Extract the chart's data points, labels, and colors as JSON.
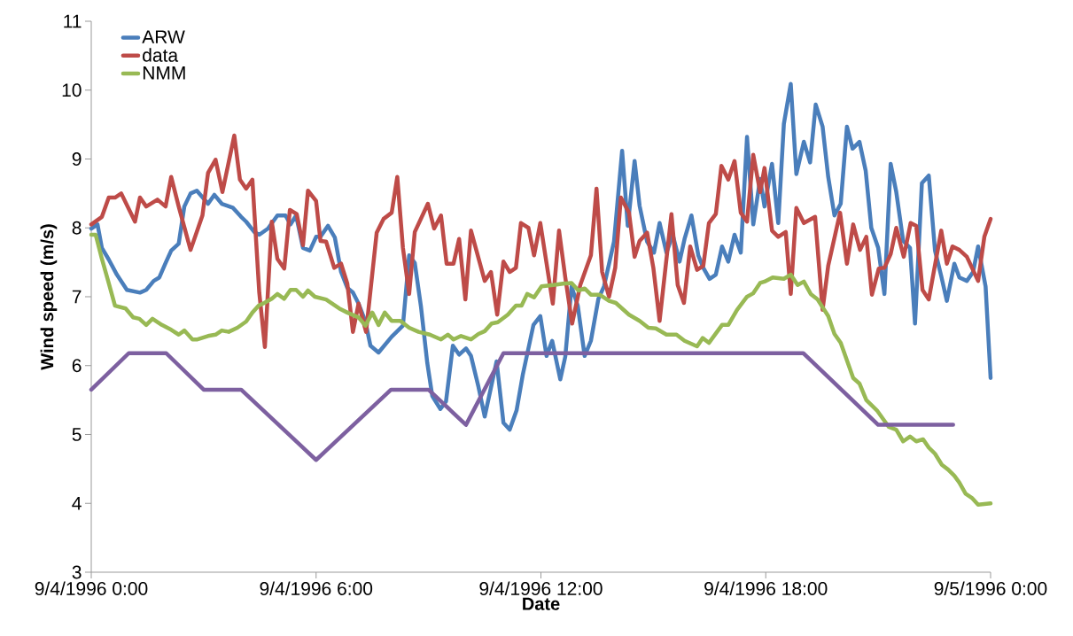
{
  "chart_data": {
    "type": "line",
    "xlabel": "Date",
    "ylabel": "Wind speed (m/s)",
    "xlim": [
      "1996-09-04T00:00",
      "1996-09-05T00:00"
    ],
    "xticks": [
      {
        "value": "1996-09-04T00:00",
        "label": "9/4/1996 0:00"
      },
      {
        "value": "1996-09-04T06:00",
        "label": "9/4/1996 6:00"
      },
      {
        "value": "1996-09-04T12:00",
        "label": "9/4/1996 12:00"
      },
      {
        "value": "1996-09-04T18:00",
        "label": "9/4/1996 18:00"
      },
      {
        "value": "1996-09-05T00:00",
        "label": "9/5/1996 0:00"
      }
    ],
    "ylim": [
      3,
      11
    ],
    "yticks": [
      3,
      4,
      5,
      6,
      7,
      8,
      9,
      10,
      11
    ],
    "legend": "top left",
    "series": [
      {
        "name": "ARW",
        "color": "#4a7ebb",
        "x": [
          "1996-09-04T00:00",
          "1996-09-04T00:10",
          "1996-09-04T00:17",
          "1996-09-04T00:28",
          "1996-09-04T00:41",
          "1996-09-04T00:57",
          "1996-09-04T01:18",
          "1996-09-04T01:28",
          "1996-09-04T01:40",
          "1996-09-04T01:49",
          "1996-09-04T01:59",
          "1996-09-04T02:08",
          "1996-09-04T02:20",
          "1996-09-04T02:29",
          "1996-09-04T02:39",
          "1996-09-04T02:49",
          "1996-09-04T03:07",
          "1996-09-04T03:17",
          "1996-09-04T03:29",
          "1996-09-04T03:47",
          "1996-09-04T04:00",
          "1996-09-04T04:08",
          "1996-09-04T04:21",
          "1996-09-04T04:29",
          "1996-09-04T04:43",
          "1996-09-04T04:58",
          "1996-09-04T05:11",
          "1996-09-04T05:19",
          "1996-09-04T05:28",
          "1996-09-04T05:39",
          "1996-09-04T05:50",
          "1996-09-04T06:00",
          "1996-09-04T06:07",
          "1996-09-04T06:19",
          "1996-09-04T06:30",
          "1996-09-04T06:40",
          "1996-09-04T06:50",
          "1996-09-04T06:59",
          "1996-09-04T07:08",
          "1996-09-04T07:19",
          "1996-09-04T07:27",
          "1996-09-04T07:40",
          "1996-09-04T08:01",
          "1996-09-04T08:19",
          "1996-09-04T08:29",
          "1996-09-04T08:38",
          "1996-09-04T08:48",
          "1996-09-04T08:58",
          "1996-09-04T09:06",
          "1996-09-04T09:19",
          "1996-09-04T09:28",
          "1996-09-04T09:39",
          "1996-09-04T09:49",
          "1996-09-04T10:00",
          "1996-09-04T10:08",
          "1996-09-04T10:20",
          "1996-09-04T10:30",
          "1996-09-04T10:49",
          "1996-09-04T11:00",
          "1996-09-04T11:10",
          "1996-09-04T11:21",
          "1996-09-04T11:31",
          "1996-09-04T11:48",
          "1996-09-04T11:59",
          "1996-09-04T12:09",
          "1996-09-04T12:18",
          "1996-09-04T12:31",
          "1996-09-04T12:39",
          "1996-09-04T12:49",
          "1996-09-04T12:59",
          "1996-09-04T13:10",
          "1996-09-04T13:20",
          "1996-09-04T13:32",
          "1996-09-04T13:41",
          "1996-09-04T13:57",
          "1996-09-04T14:10",
          "1996-09-04T14:19",
          "1996-09-04T14:30",
          "1996-09-04T14:38",
          "1996-09-04T14:50",
          "1996-09-04T15:01",
          "1996-09-04T15:10",
          "1996-09-04T15:21",
          "1996-09-04T15:31",
          "1996-09-04T15:42",
          "1996-09-04T15:50",
          "1996-09-04T16:01",
          "1996-09-04T16:12",
          "1996-09-04T16:20",
          "1996-09-04T16:30",
          "1996-09-04T16:40",
          "1996-09-04T16:50",
          "1996-09-04T17:00",
          "1996-09-04T17:10",
          "1996-09-04T17:20",
          "1996-09-04T17:30",
          "1996-09-04T17:40",
          "1996-09-04T17:51",
          "1996-09-04T17:58",
          "1996-09-04T18:10",
          "1996-09-04T18:20",
          "1996-09-04T18:29",
          "1996-09-04T18:40",
          "1996-09-04T18:49",
          "1996-09-04T19:01",
          "1996-09-04T19:11",
          "1996-09-04T19:20",
          "1996-09-04T19:31",
          "1996-09-04T19:40",
          "1996-09-04T19:50",
          "1996-09-04T20:00",
          "1996-09-04T20:10",
          "1996-09-04T20:19",
          "1996-09-04T20:30",
          "1996-09-04T20:40",
          "1996-09-04T20:49",
          "1996-09-04T21:00",
          "1996-09-04T21:10",
          "1996-09-04T21:20",
          "1996-09-04T21:29",
          "1996-09-04T21:40",
          "1996-09-04T21:51",
          "1996-09-04T21:59",
          "1996-09-04T22:10",
          "1996-09-04T22:21",
          "1996-09-04T22:31",
          "1996-09-04T22:41",
          "1996-09-04T22:50",
          "1996-09-04T23:02",
          "1996-09-04T23:10",
          "1996-09-04T23:22",
          "1996-09-04T23:32",
          "1996-09-04T23:40",
          "1996-09-04T23:52",
          "1996-09-05T00:00"
        ],
        "values": [
          7.99,
          8.05,
          7.71,
          7.54,
          7.32,
          7.1,
          7.06,
          7.1,
          7.23,
          7.28,
          7.49,
          7.67,
          7.77,
          8.31,
          8.5,
          8.54,
          8.35,
          8.48,
          8.35,
          8.29,
          8.16,
          8.09,
          7.94,
          7.9,
          7.99,
          8.18,
          8.18,
          8.05,
          8.18,
          7.71,
          7.67,
          7.87,
          7.87,
          8.03,
          7.86,
          7.36,
          7.13,
          7.06,
          6.9,
          6.64,
          6.29,
          6.19,
          6.42,
          6.58,
          7.6,
          7.49,
          6.85,
          6.04,
          5.56,
          5.37,
          5.48,
          6.29,
          6.16,
          6.25,
          6.14,
          5.69,
          5.26,
          6.06,
          5.17,
          5.07,
          5.35,
          5.87,
          6.59,
          6.72,
          6.14,
          6.36,
          5.8,
          6.13,
          7.15,
          6.87,
          6.14,
          6.36,
          6.97,
          7.15,
          7.8,
          9.12,
          8.03,
          8.97,
          8.32,
          7.8,
          7.64,
          8.07,
          7.64,
          7.9,
          7.51,
          7.84,
          8.18,
          7.6,
          7.42,
          7.26,
          7.32,
          7.73,
          7.51,
          7.9,
          7.64,
          9.32,
          8.05,
          8.71,
          8.31,
          8.93,
          8.07,
          9.51,
          10.09,
          8.78,
          9.25,
          8.95,
          9.79,
          9.47,
          8.74,
          8.18,
          8.35,
          9.47,
          9.15,
          9.25,
          8.83,
          8.0,
          7.71,
          7.04,
          8.93,
          8.52,
          7.81,
          7.71,
          6.61,
          8.65,
          8.76,
          7.67,
          7.3,
          6.94,
          7.48,
          7.28,
          7.23,
          7.36,
          7.73,
          7.15,
          5.82
        ]
      },
      {
        "name": "data",
        "color": "#be4b48",
        "x": [
          "1996-09-04T00:00",
          "1996-09-04T00:17",
          "1996-09-04T00:28",
          "1996-09-04T00:38",
          "1996-09-04T00:48",
          "1996-09-04T01:10",
          "1996-09-04T01:18",
          "1996-09-04T01:28",
          "1996-09-04T01:46",
          "1996-09-04T01:59",
          "1996-09-04T02:08",
          "1996-09-04T02:20",
          "1996-09-04T02:39",
          "1996-09-04T02:58",
          "1996-09-04T03:07",
          "1996-09-04T03:19",
          "1996-09-04T03:30",
          "1996-09-04T03:49",
          "1996-09-04T03:58",
          "1996-09-04T04:08",
          "1996-09-04T04:18",
          "1996-09-04T04:29",
          "1996-09-04T04:38",
          "1996-09-04T04:49",
          "1996-09-04T04:58",
          "1996-09-04T05:09",
          "1996-09-04T05:18",
          "1996-09-04T05:29",
          "1996-09-04T05:39",
          "1996-09-04T05:47",
          "1996-09-04T06:00",
          "1996-09-04T06:07",
          "1996-09-04T06:16",
          "1996-09-04T06:29",
          "1996-09-04T06:40",
          "1996-09-04T06:50",
          "1996-09-04T06:59",
          "1996-09-04T07:08",
          "1996-09-04T07:20",
          "1996-09-04T07:37",
          "1996-09-04T07:48",
          "1996-09-04T08:01",
          "1996-09-04T08:10",
          "1996-09-04T08:19",
          "1996-09-04T08:29",
          "1996-09-04T08:38",
          "1996-09-04T08:59",
          "1996-09-04T09:09",
          "1996-09-04T09:20",
          "1996-09-04T09:29",
          "1996-09-04T09:40",
          "1996-09-04T09:49",
          "1996-09-04T09:59",
          "1996-09-04T10:08",
          "1996-09-04T10:30",
          "1996-09-04T10:40",
          "1996-09-04T10:50",
          "1996-09-04T11:00",
          "1996-09-04T11:10",
          "1996-09-04T11:20",
          "1996-09-04T11:28",
          "1996-09-04T11:40",
          "1996-09-04T11:49",
          "1996-09-04T11:59",
          "1996-09-04T12:19",
          "1996-09-04T12:29",
          "1996-09-04T12:39",
          "1996-09-04T12:50",
          "1996-09-04T13:03",
          "1996-09-04T13:20",
          "1996-09-04T13:29",
          "1996-09-04T13:38",
          "1996-09-04T13:49",
          "1996-09-04T13:59",
          "1996-09-04T14:08",
          "1996-09-04T14:21",
          "1996-09-04T14:30",
          "1996-09-04T14:38",
          "1996-09-04T14:50",
          "1996-09-04T15:00",
          "1996-09-04T15:10",
          "1996-09-04T15:29",
          "1996-09-04T15:39",
          "1996-09-04T15:49",
          "1996-09-04T15:59",
          "1996-09-04T16:10",
          "1996-09-04T16:20",
          "1996-09-04T16:29",
          "1996-09-04T16:40",
          "1996-09-04T16:49",
          "1996-09-04T17:00",
          "1996-09-04T17:10",
          "1996-09-04T17:20",
          "1996-09-04T17:30",
          "1996-09-04T17:40",
          "1996-09-04T17:51",
          "1996-09-04T17:58",
          "1996-09-04T18:10",
          "1996-09-04T18:20",
          "1996-09-04T18:32",
          "1996-09-04T18:40",
          "1996-09-04T18:49",
          "1996-09-04T19:01",
          "1996-09-04T19:19",
          "1996-09-04T19:31",
          "1996-09-04T19:40",
          "1996-09-04T19:59",
          "1996-09-04T20:10",
          "1996-09-04T20:20",
          "1996-09-04T20:31",
          "1996-09-04T20:41",
          "1996-09-04T20:50",
          "1996-09-04T21:01",
          "1996-09-04T21:10",
          "1996-09-04T21:20",
          "1996-09-04T21:29",
          "1996-09-04T21:41",
          "1996-09-04T21:52",
          "1996-09-04T22:01",
          "1996-09-04T22:11",
          "1996-09-04T22:21",
          "1996-09-04T22:41",
          "1996-09-04T22:50",
          "1996-09-04T22:59",
          "1996-09-04T23:10",
          "1996-09-04T23:22",
          "1996-09-04T23:40",
          "1996-09-04T23:50",
          "1996-09-05T00:00"
        ],
        "values": [
          8.05,
          8.16,
          8.44,
          8.44,
          8.5,
          8.09,
          8.44,
          8.31,
          8.41,
          8.31,
          8.74,
          8.31,
          7.68,
          8.18,
          8.8,
          8.99,
          8.52,
          9.34,
          8.7,
          8.57,
          8.7,
          7.06,
          6.27,
          8.09,
          7.55,
          7.41,
          8.26,
          8.2,
          7.75,
          8.54,
          8.39,
          7.81,
          7.8,
          7.42,
          7.48,
          7.19,
          6.49,
          6.9,
          6.49,
          7.93,
          8.13,
          8.22,
          8.74,
          7.71,
          7.04,
          7.94,
          8.35,
          7.99,
          8.18,
          7.48,
          7.48,
          7.84,
          6.96,
          7.96,
          7.23,
          7.36,
          6.74,
          7.51,
          7.36,
          7.42,
          8.07,
          8.0,
          7.6,
          8.07,
          6.9,
          7.96,
          7.28,
          6.61,
          7.17,
          7.6,
          8.57,
          7.36,
          7.0,
          7.42,
          8.44,
          8.22,
          7.58,
          7.81,
          7.93,
          7.42,
          6.65,
          8.2,
          7.17,
          6.91,
          7.73,
          7.39,
          7.45,
          8.07,
          8.2,
          8.9,
          8.7,
          8.97,
          8.22,
          8.09,
          9.06,
          8.52,
          8.87,
          7.96,
          7.87,
          7.94,
          7.04,
          8.29,
          8.07,
          8.16,
          6.81,
          7.45,
          8.22,
          7.48,
          8.05,
          7.68,
          7.87,
          7.03,
          7.41,
          7.42,
          7.62,
          8.0,
          7.58,
          8.07,
          8.03,
          7.1,
          6.96,
          7.96,
          7.48,
          7.73,
          7.68,
          7.58,
          7.23,
          7.87,
          8.13
        ]
      },
      {
        "name": "NMM",
        "color": "#98b954",
        "x": [
          "1996-09-04T00:00",
          "1996-09-04T00:07",
          "1996-09-04T00:17",
          "1996-09-04T00:27",
          "1996-09-04T00:38",
          "1996-09-04T00:55",
          "1996-09-04T01:07",
          "1996-09-04T01:17",
          "1996-09-04T01:28",
          "1996-09-04T01:38",
          "1996-09-04T01:53",
          "1996-09-04T02:08",
          "1996-09-04T02:20",
          "1996-09-04T02:29",
          "1996-09-04T02:42",
          "1996-09-04T02:50",
          "1996-09-04T03:07",
          "1996-09-04T03:19",
          "1996-09-04T03:29",
          "1996-09-04T03:40",
          "1996-09-04T03:54",
          "1996-09-04T04:08",
          "1996-09-04T04:18",
          "1996-09-04T04:28",
          "1996-09-04T04:37",
          "1996-09-04T04:49",
          "1996-09-04T04:58",
          "1996-09-04T05:09",
          "1996-09-04T05:19",
          "1996-09-04T05:28",
          "1996-09-04T05:39",
          "1996-09-04T05:47",
          "1996-09-04T05:58",
          "1996-09-04T06:16",
          "1996-09-04T06:37",
          "1996-09-04T06:50",
          "1996-09-04T07:08",
          "1996-09-04T07:19",
          "1996-09-04T07:30",
          "1996-09-04T07:40",
          "1996-09-04T07:50",
          "1996-09-04T08:01",
          "1996-09-04T08:15",
          "1996-09-04T08:29",
          "1996-09-04T08:44",
          "1996-09-04T09:02",
          "1996-09-04T09:20",
          "1996-09-04T09:31",
          "1996-09-04T09:40",
          "1996-09-04T09:52",
          "1996-09-04T10:08",
          "1996-09-04T10:20",
          "1996-09-04T10:30",
          "1996-09-04T10:41",
          "1996-09-04T10:51",
          "1996-09-04T11:07",
          "1996-09-04T11:20",
          "1996-09-04T11:29",
          "1996-09-04T11:38",
          "1996-09-04T11:49",
          "1996-09-04T12:01",
          "1996-09-04T12:20",
          "1996-09-04T12:35",
          "1996-09-04T12:49",
          "1996-09-04T13:00",
          "1996-09-04T13:10",
          "1996-09-04T13:20",
          "1996-09-04T13:34",
          "1996-09-04T13:49",
          "1996-09-04T14:00",
          "1996-09-04T14:21",
          "1996-09-04T14:38",
          "1996-09-04T14:52",
          "1996-09-04T15:04",
          "1996-09-04T15:21",
          "1996-09-04T15:37",
          "1996-09-04T15:50",
          "1996-09-04T16:10",
          "1996-09-04T16:19",
          "1996-09-04T16:29",
          "1996-09-04T16:50",
          "1996-09-04T17:00",
          "1996-09-04T17:14",
          "1996-09-04T17:30",
          "1996-09-04T17:40",
          "1996-09-04T17:51",
          "1996-09-04T17:58",
          "1996-09-04T18:11",
          "1996-09-04T18:29",
          "1996-09-04T18:40",
          "1996-09-04T18:51",
          "1996-09-04T19:01",
          "1996-09-04T19:12",
          "1996-09-04T19:23",
          "1996-09-04T19:40",
          "1996-09-04T19:50",
          "1996-09-04T20:00",
          "1996-09-04T20:20",
          "1996-09-04T20:30",
          "1996-09-04T20:41",
          "1996-09-04T20:58",
          "1996-09-04T21:17",
          "1996-09-04T21:29",
          "1996-09-04T21:40",
          "1996-09-04T21:51",
          "1996-09-04T22:01",
          "1996-09-04T22:12",
          "1996-09-04T22:21",
          "1996-09-04T22:31",
          "1996-09-04T22:42",
          "1996-09-04T22:52",
          "1996-09-04T23:02",
          "1996-09-04T23:10",
          "1996-09-04T23:20",
          "1996-09-04T23:30",
          "1996-09-04T23:40",
          "1996-09-05T00:00"
        ],
        "values": [
          7.9,
          7.9,
          7.55,
          7.23,
          6.87,
          6.83,
          6.7,
          6.68,
          6.59,
          6.68,
          6.59,
          6.52,
          6.45,
          6.51,
          6.38,
          6.38,
          6.43,
          6.45,
          6.51,
          6.49,
          6.55,
          6.64,
          6.77,
          6.87,
          6.91,
          6.97,
          7.04,
          6.97,
          7.1,
          7.1,
          7.0,
          7.09,
          7.0,
          6.96,
          6.83,
          6.77,
          6.7,
          6.58,
          6.77,
          6.59,
          6.77,
          6.65,
          6.65,
          6.55,
          6.49,
          6.45,
          6.38,
          6.45,
          6.38,
          6.43,
          6.38,
          6.46,
          6.5,
          6.61,
          6.63,
          6.74,
          6.87,
          6.87,
          7.04,
          6.99,
          7.15,
          7.17,
          7.19,
          7.2,
          7.09,
          7.12,
          7.03,
          7.03,
          6.94,
          6.91,
          6.74,
          6.65,
          6.55,
          6.54,
          6.45,
          6.45,
          6.36,
          6.28,
          6.4,
          6.33,
          6.59,
          6.59,
          6.81,
          7.0,
          7.05,
          7.2,
          7.22,
          7.28,
          7.26,
          7.32,
          7.17,
          7.22,
          7.04,
          6.96,
          6.72,
          6.46,
          6.33,
          5.82,
          5.74,
          5.5,
          5.35,
          5.11,
          5.07,
          4.9,
          4.97,
          4.9,
          4.93,
          4.81,
          4.72,
          4.56,
          4.49,
          4.4,
          4.3,
          4.14,
          4.08,
          3.98,
          4.0
        ]
      },
      {
        "color": "#7d60a0",
        "x": [
          "1996-09-04T00:00",
          "1996-09-04T01:00",
          "1996-09-04T02:00",
          "1996-09-04T03:00",
          "1996-09-04T04:00",
          "1996-09-04T06:00",
          "1996-09-04T08:00",
          "1996-09-04T09:00",
          "1996-09-04T10:00",
          "1996-09-04T11:00",
          "1996-09-04T19:00",
          "1996-09-04T21:00",
          "1996-09-04T23:00"
        ],
        "values": [
          5.65,
          6.18,
          6.18,
          5.65,
          5.65,
          4.63,
          5.65,
          5.65,
          5.14,
          6.18,
          6.18,
          5.14,
          5.14
        ]
      }
    ]
  }
}
